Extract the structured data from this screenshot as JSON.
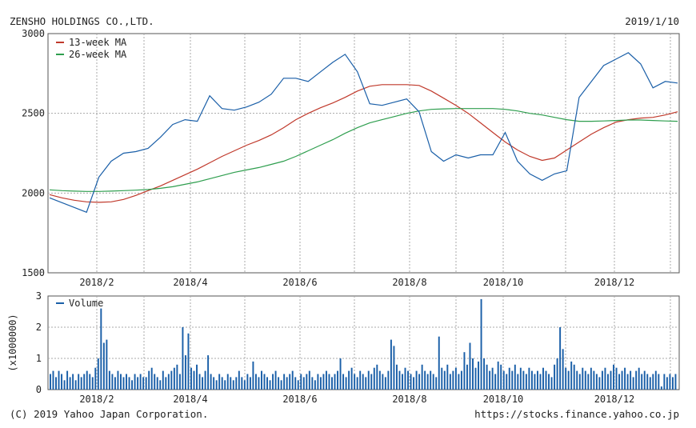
{
  "header": {
    "company": "ZENSHO HOLDINGS CO.,LTD.",
    "date": "2019/1/10"
  },
  "footer": {
    "copyright": "(C) 2019 Yahoo Japan Corporation.",
    "url": "https://stocks.finance.yahoo.co.jp"
  },
  "colors": {
    "price": "#1a5fa8",
    "ma13": "#c0392b",
    "ma26": "#2e9e4e",
    "volume": "#1a5fa8",
    "grid": "#a8a8a8",
    "axis": "#555555"
  },
  "chart_data": [
    {
      "type": "line",
      "x_ticks": [
        "2018/2",
        "2018/4",
        "2018/6",
        "2018/8",
        "2018/10",
        "2018/12"
      ],
      "ylim": [
        1500,
        3000
      ],
      "y_ticks": [
        "1500",
        "2000",
        "2500",
        "3000"
      ],
      "grid": true,
      "legend_position": "top-left",
      "series": [
        {
          "name": "13-week MA",
          "color": "#c0392b",
          "values": [
            1990,
            1970,
            1955,
            1945,
            1942,
            1945,
            1960,
            1985,
            2015,
            2045,
            2080,
            2115,
            2150,
            2190,
            2230,
            2265,
            2300,
            2330,
            2365,
            2410,
            2460,
            2500,
            2535,
            2565,
            2600,
            2640,
            2670,
            2680,
            2680,
            2680,
            2675,
            2640,
            2595,
            2550,
            2500,
            2440,
            2380,
            2320,
            2270,
            2230,
            2205,
            2220,
            2270,
            2320,
            2370,
            2410,
            2445,
            2460,
            2470,
            2475,
            2490,
            2510
          ]
        },
        {
          "name": "26-week MA",
          "color": "#2e9e4e",
          "values": [
            2020,
            2015,
            2012,
            2010,
            2010,
            2012,
            2015,
            2018,
            2022,
            2030,
            2040,
            2055,
            2070,
            2090,
            2110,
            2130,
            2145,
            2160,
            2180,
            2200,
            2230,
            2265,
            2300,
            2335,
            2375,
            2410,
            2440,
            2460,
            2480,
            2500,
            2515,
            2525,
            2528,
            2530,
            2530,
            2530,
            2530,
            2525,
            2515,
            2500,
            2490,
            2475,
            2460,
            2450,
            2450,
            2452,
            2455,
            2458,
            2458,
            2455,
            2452,
            2450
          ]
        },
        {
          "name": "Price",
          "color": "#1a5fa8",
          "values": [
            1970,
            1940,
            1910,
            1880,
            2100,
            2200,
            2250,
            2260,
            2280,
            2350,
            2430,
            2460,
            2450,
            2610,
            2530,
            2520,
            2540,
            2570,
            2620,
            2720,
            2720,
            2700,
            2760,
            2820,
            2870,
            2760,
            2560,
            2550,
            2570,
            2590,
            2510,
            2260,
            2200,
            2240,
            2220,
            2240,
            2240,
            2380,
            2200,
            2120,
            2080,
            2120,
            2140,
            2600,
            2700,
            2800,
            2840,
            2880,
            2810,
            2660,
            2700,
            2690
          ]
        }
      ]
    },
    {
      "type": "bar",
      "x_ticks": [
        "2018/2",
        "2018/4",
        "2018/6",
        "2018/8",
        "2018/10",
        "2018/12"
      ],
      "ylim": [
        0,
        3
      ],
      "y_ticks": [
        "0",
        "1",
        "2",
        "3"
      ],
      "ylabel": "(x1000000)",
      "grid": true,
      "legend_position": "top-left",
      "series": [
        {
          "name": "Volume",
          "color": "#1a5fa8",
          "values": [
            0.5,
            0.6,
            0.4,
            0.6,
            0.5,
            0.3,
            0.6,
            0.4,
            0.5,
            0.3,
            0.5,
            0.4,
            0.5,
            0.6,
            0.5,
            0.4,
            0.7,
            1.0,
            2.6,
            1.5,
            1.6,
            0.6,
            0.5,
            0.4,
            0.6,
            0.5,
            0.4,
            0.5,
            0.4,
            0.3,
            0.5,
            0.4,
            0.5,
            0.4,
            0.4,
            0.6,
            0.7,
            0.5,
            0.4,
            0.3,
            0.6,
            0.4,
            0.5,
            0.6,
            0.7,
            0.8,
            0.5,
            2.0,
            1.1,
            1.8,
            0.7,
            0.6,
            0.8,
            0.5,
            0.4,
            0.6,
            1.1,
            0.5,
            0.4,
            0.3,
            0.5,
            0.4,
            0.3,
            0.5,
            0.4,
            0.3,
            0.4,
            0.6,
            0.4,
            0.3,
            0.5,
            0.4,
            0.9,
            0.5,
            0.4,
            0.6,
            0.5,
            0.4,
            0.3,
            0.5,
            0.6,
            0.4,
            0.3,
            0.5,
            0.4,
            0.5,
            0.6,
            0.4,
            0.3,
            0.5,
            0.4,
            0.5,
            0.6,
            0.4,
            0.3,
            0.5,
            0.4,
            0.5,
            0.6,
            0.5,
            0.4,
            0.5,
            0.6,
            1.0,
            0.5,
            0.4,
            0.6,
            0.7,
            0.5,
            0.4,
            0.6,
            0.5,
            0.4,
            0.6,
            0.5,
            0.7,
            0.8,
            0.6,
            0.5,
            0.4,
            0.6,
            1.6,
            1.4,
            0.8,
            0.6,
            0.5,
            0.7,
            0.6,
            0.5,
            0.4,
            0.6,
            0.5,
            0.8,
            0.6,
            0.5,
            0.6,
            0.5,
            0.4,
            1.7,
            0.7,
            0.6,
            0.8,
            0.5,
            0.6,
            0.7,
            0.5,
            0.6,
            1.2,
            0.8,
            1.5,
            1.0,
            0.7,
            0.9,
            2.9,
            1.0,
            0.8,
            0.6,
            0.7,
            0.5,
            0.9,
            0.8,
            0.6,
            0.5,
            0.7,
            0.6,
            0.8,
            0.5,
            0.7,
            0.6,
            0.5,
            0.7,
            0.6,
            0.5,
            0.6,
            0.5,
            0.7,
            0.6,
            0.5,
            0.4,
            0.8,
            1.0,
            2.0,
            1.3,
            0.7,
            0.6,
            0.9,
            0.8,
            0.6,
            0.5,
            0.7,
            0.6,
            0.5,
            0.7,
            0.6,
            0.5,
            0.4,
            0.6,
            0.7,
            0.5,
            0.6,
            0.8,
            0.7,
            0.5,
            0.6,
            0.7,
            0.5,
            0.6,
            0.4,
            0.6,
            0.7,
            0.5,
            0.6,
            0.5,
            0.4,
            0.5,
            0.6,
            0.5,
            0.1,
            0.5,
            0.4,
            0.5,
            0.4,
            0.5
          ]
        }
      ]
    }
  ]
}
